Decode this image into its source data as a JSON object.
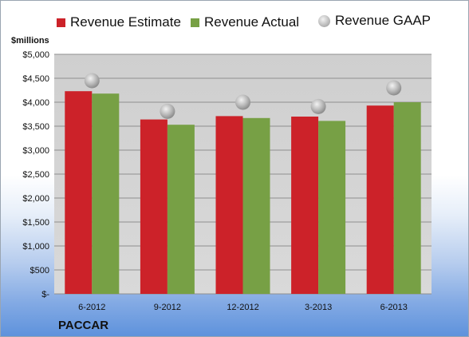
{
  "company": "PACCAR",
  "chart_data": {
    "type": "bar",
    "ylabel": "$millions",
    "ylim": [
      0,
      5000
    ],
    "y_ticks": [
      "$-",
      "$500",
      "$1,000",
      "$1,500",
      "$2,000",
      "$2,500",
      "$3,000",
      "$3,500",
      "$4,000",
      "$4,500",
      "$5,000"
    ],
    "categories": [
      "6-2012",
      "9-2012",
      "12-2012",
      "3-2013",
      "6-2013"
    ],
    "series": [
      {
        "name": "Revenue Estimate",
        "type": "bar",
        "color": "#cc2229",
        "values": [
          4230,
          3640,
          3710,
          3700,
          3930
        ]
      },
      {
        "name": "Revenue Actual",
        "type": "bar",
        "color": "#77a045",
        "values": [
          4180,
          3530,
          3670,
          3610,
          4000
        ]
      },
      {
        "name": "Revenue GAAP",
        "type": "scatter",
        "color": "#b0b0b0",
        "values": [
          4450,
          3810,
          4000,
          3910,
          4300
        ]
      }
    ],
    "grid": true,
    "legend": "top"
  }
}
